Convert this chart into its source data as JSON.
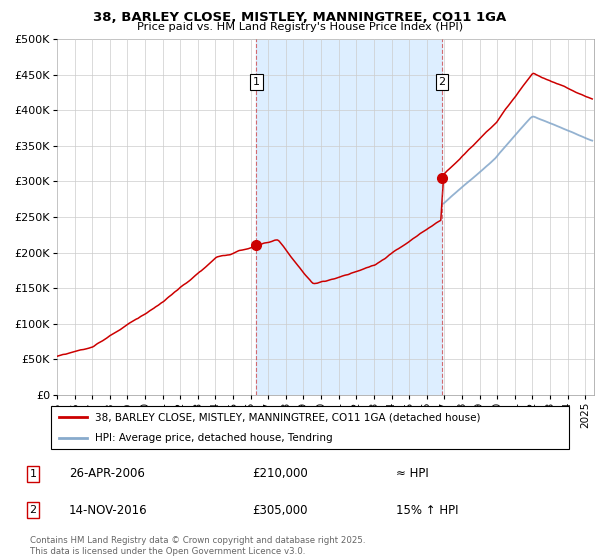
{
  "title_line1": "38, BARLEY CLOSE, MISTLEY, MANNINGTREE, CO11 1GA",
  "title_line2": "Price paid vs. HM Land Registry's House Price Index (HPI)",
  "ylim": [
    0,
    500000
  ],
  "yticks": [
    0,
    50000,
    100000,
    150000,
    200000,
    250000,
    300000,
    350000,
    400000,
    450000,
    500000
  ],
  "ytick_labels": [
    "£0",
    "£50K",
    "£100K",
    "£150K",
    "£200K",
    "£250K",
    "£300K",
    "£350K",
    "£400K",
    "£450K",
    "£500K"
  ],
  "xlim_start": 1995.0,
  "xlim_end": 2025.5,
  "purchase1_x": 2006.32,
  "purchase1_y": 210000,
  "purchase2_x": 2016.87,
  "purchase2_y": 305000,
  "line_color_red": "#cc0000",
  "line_color_blue": "#88aacc",
  "shade_color": "#ddeeff",
  "dashed_line_color": "#cc3333",
  "grid_color": "#cccccc",
  "legend_label_red": "38, BARLEY CLOSE, MISTLEY, MANNINGTREE, CO11 1GA (detached house)",
  "legend_label_blue": "HPI: Average price, detached house, Tendring",
  "table_row1": [
    "1",
    "26-APR-2006",
    "£210,000",
    "≈ HPI"
  ],
  "table_row2": [
    "2",
    "14-NOV-2016",
    "£305,000",
    "15% ↑ HPI"
  ],
  "footer_text": "Contains HM Land Registry data © Crown copyright and database right 2025.\nThis data is licensed under the Open Government Licence v3.0."
}
